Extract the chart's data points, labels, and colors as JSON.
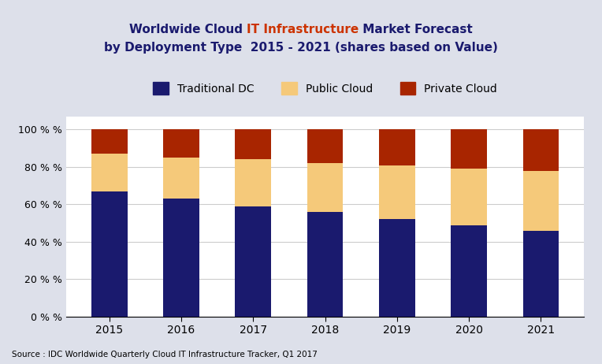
{
  "years": [
    "2015",
    "2016",
    "2017",
    "2018",
    "2019",
    "2020",
    "2021"
  ],
  "traditional_dc": [
    67,
    63,
    59,
    56,
    52,
    49,
    46
  ],
  "public_cloud": [
    20,
    22,
    25,
    26,
    29,
    30,
    32
  ],
  "private_cloud": [
    13,
    15,
    16,
    18,
    19,
    21,
    22
  ],
  "colors": {
    "traditional_dc": "#1a1a6e",
    "public_cloud": "#f5c97a",
    "private_cloud": "#a82500"
  },
  "title_s1": "Worldwide Cloud ",
  "title_s2": "IT Infrastructure",
  "title_s3": " Market Forecast",
  "title_line2": "by Deployment Type  2015 - 2021 (shares based on Value)",
  "title_color_normal": "#1a1a6e",
  "title_highlight_color": "#cc3300",
  "legend_labels": [
    "Traditional DC",
    "Public Cloud",
    "Private Cloud"
  ],
  "ytick_labels": [
    "0 % %",
    "20 % %",
    "40 % %",
    "60 % %",
    "80 % %",
    "100 % %"
  ],
  "ytick_vals": [
    0,
    20,
    40,
    60,
    80,
    100
  ],
  "source_text": "Source : IDC Worldwide Quarterly Cloud IT Infrastructure Tracker, Q1 2017",
  "background_color": "#dde0ea",
  "plot_bg_color": "#ffffff",
  "bar_width": 0.5
}
